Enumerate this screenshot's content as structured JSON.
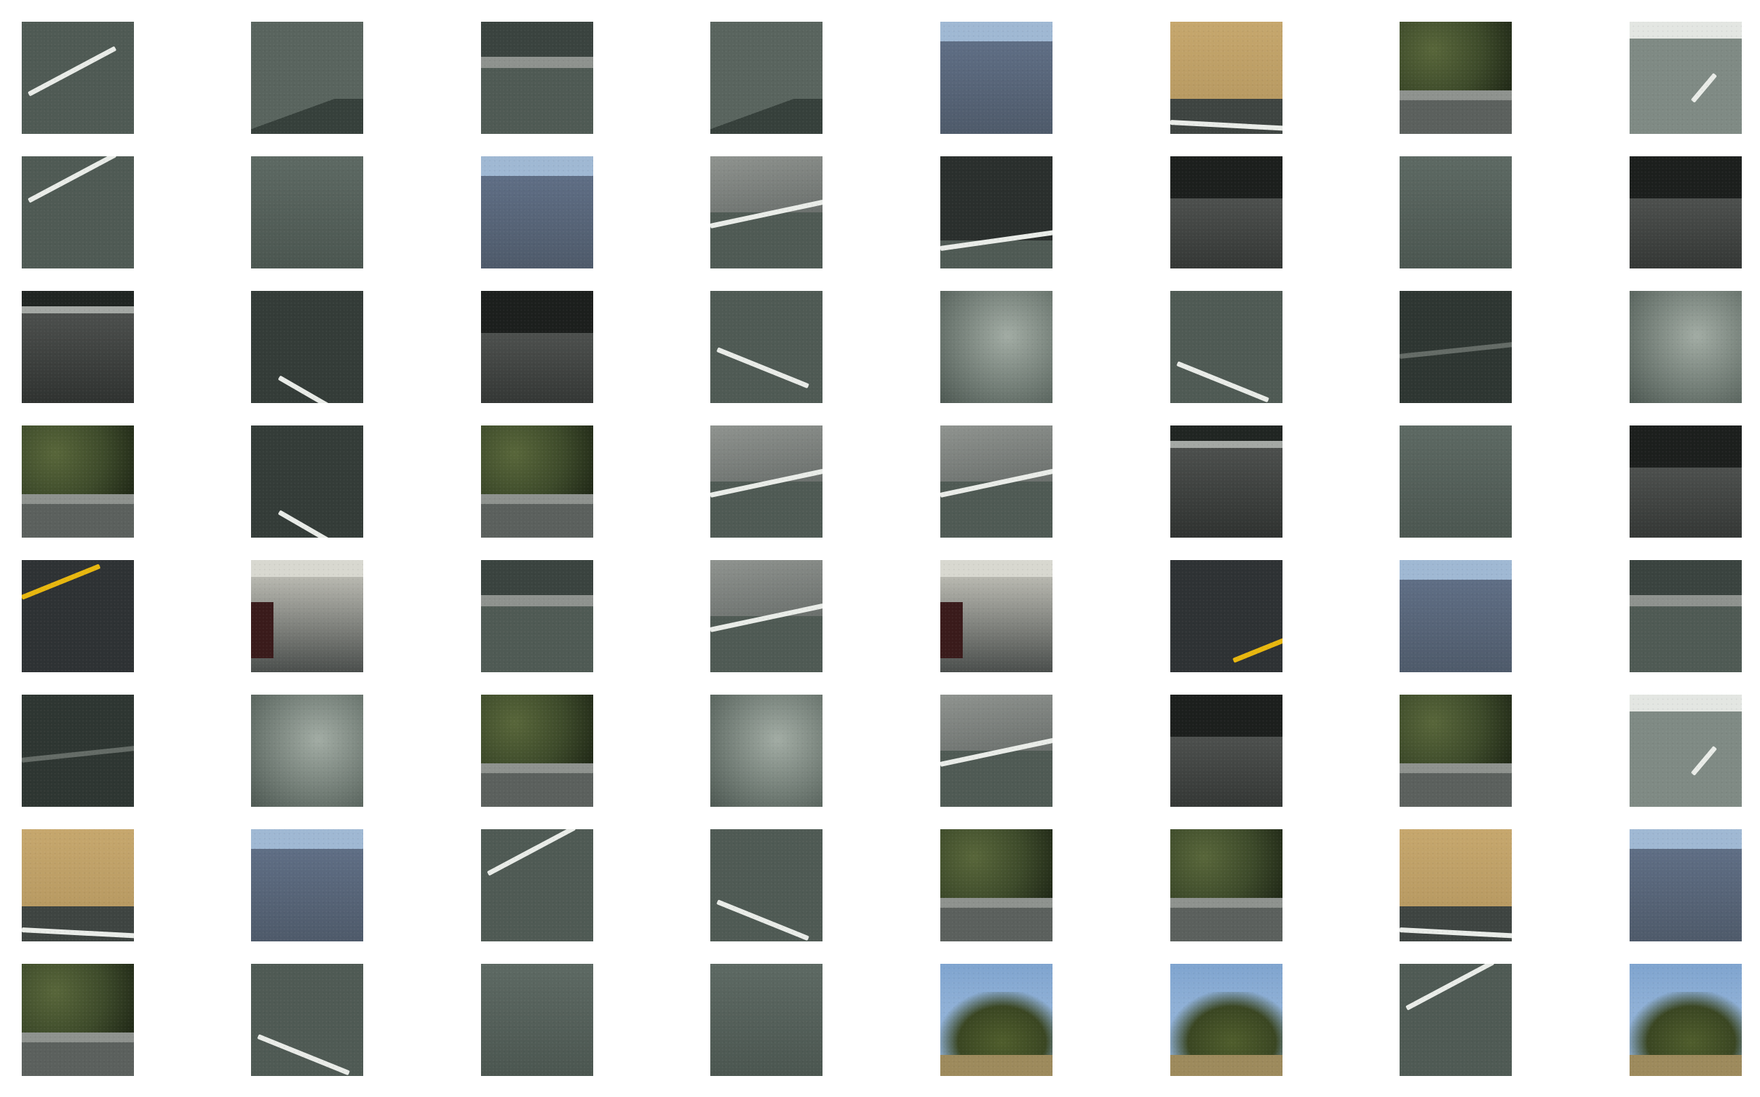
{
  "grid": {
    "rows": 8,
    "cols": 8
  },
  "colors": {
    "background": "#ffffff",
    "asphalt": "#4f5a54",
    "asphalt_dark": "#2e3632",
    "lane_white": "#e9ece8",
    "lane_yellow": "#e8b70f",
    "sky": "#9fb8d3",
    "hills": "#5f6e85",
    "vegetation": "#3d4a2a",
    "dry_grass": "#b89a62",
    "barrier": "#8e928e"
  },
  "tiles": [
    {
      "kind": "road-lane-marking"
    },
    {
      "kind": "road-shadow"
    },
    {
      "kind": "guardrail-road"
    },
    {
      "kind": "road-shadow"
    },
    {
      "kind": "hills-sky"
    },
    {
      "kind": "dry-grass-road"
    },
    {
      "kind": "trees-guardrail"
    },
    {
      "kind": "bright-road-marking"
    },
    {
      "kind": "road-lane-marking"
    },
    {
      "kind": "road-plain"
    },
    {
      "kind": "hills-sky"
    },
    {
      "kind": "barrier-road"
    },
    {
      "kind": "dark-road-edge"
    },
    {
      "kind": "dark-barrier"
    },
    {
      "kind": "road-plain"
    },
    {
      "kind": "dark-barrier"
    },
    {
      "kind": "concrete-barrier"
    },
    {
      "kind": "dark-road-marking"
    },
    {
      "kind": "dark-barrier"
    },
    {
      "kind": "road-lane-marking"
    },
    {
      "kind": "blurred-road"
    },
    {
      "kind": "road-lane-marking"
    },
    {
      "kind": "dark-road"
    },
    {
      "kind": "blurred-road"
    },
    {
      "kind": "trees-guardrail"
    },
    {
      "kind": "dark-road-marking"
    },
    {
      "kind": "trees-guardrail"
    },
    {
      "kind": "barrier-road"
    },
    {
      "kind": "barrier-road"
    },
    {
      "kind": "concrete-barrier"
    },
    {
      "kind": "road-plain"
    },
    {
      "kind": "dark-barrier"
    },
    {
      "kind": "yellow-line-road"
    },
    {
      "kind": "car-road"
    },
    {
      "kind": "guardrail-road"
    },
    {
      "kind": "barrier-road"
    },
    {
      "kind": "car-road"
    },
    {
      "kind": "yellow-line-road"
    },
    {
      "kind": "hills-sky"
    },
    {
      "kind": "guardrail-road"
    },
    {
      "kind": "dark-road"
    },
    {
      "kind": "blurred-road"
    },
    {
      "kind": "trees-guardrail"
    },
    {
      "kind": "blurred-road"
    },
    {
      "kind": "barrier-road"
    },
    {
      "kind": "dark-barrier"
    },
    {
      "kind": "trees-guardrail"
    },
    {
      "kind": "bright-road-marking"
    },
    {
      "kind": "dry-grass-road"
    },
    {
      "kind": "hills-sky"
    },
    {
      "kind": "road-lane-marking"
    },
    {
      "kind": "road-lane-marking"
    },
    {
      "kind": "trees-guardrail"
    },
    {
      "kind": "trees-guardrail"
    },
    {
      "kind": "dry-grass-road"
    },
    {
      "kind": "hills-sky"
    },
    {
      "kind": "trees-guardrail"
    },
    {
      "kind": "road-lane-marking"
    },
    {
      "kind": "road-plain"
    },
    {
      "kind": "road-plain"
    },
    {
      "kind": "trees-sky"
    },
    {
      "kind": "trees-sky"
    },
    {
      "kind": "road-lane-marking"
    },
    {
      "kind": "trees-sky"
    }
  ]
}
